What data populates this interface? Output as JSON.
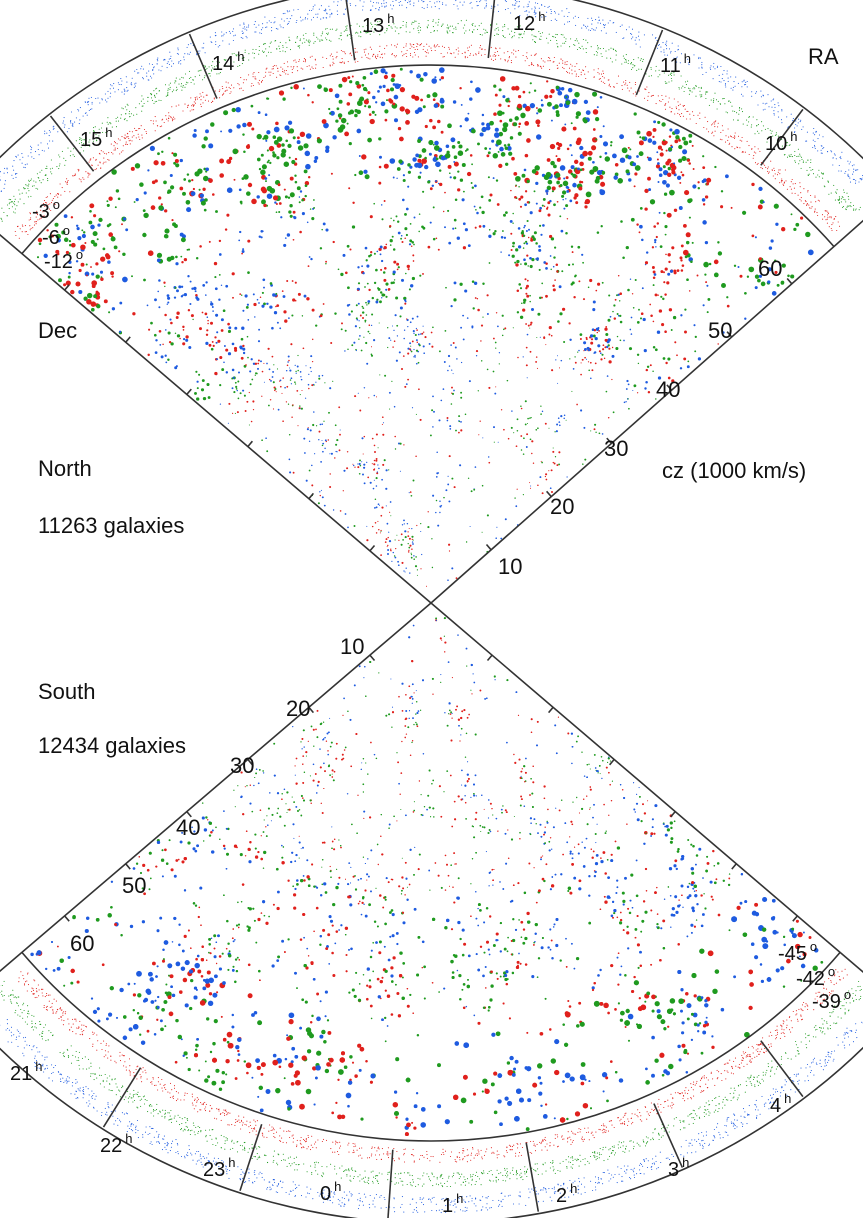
{
  "labels": {
    "ra": "RA",
    "dec": "Dec",
    "cz": "cz (1000 km/s)",
    "north": "North",
    "south": "South",
    "north_count": "11263 galaxies",
    "south_count": "12434 galaxies",
    "hour_sup": "h",
    "deg_sup": "o"
  },
  "north": {
    "ra_ticks": [
      "15",
      "14",
      "13",
      "12",
      "11",
      "10"
    ],
    "dec_labels": [
      "-3",
      "-6",
      "-12"
    ],
    "cz_ticks": [
      "10",
      "20",
      "30",
      "40",
      "50",
      "60"
    ]
  },
  "south": {
    "ra_ticks": [
      "21",
      "22",
      "23",
      "0",
      "1",
      "2",
      "3",
      "4"
    ],
    "dec_labels": [
      "-45",
      "-42",
      "-39"
    ],
    "cz_ticks": [
      "10",
      "20",
      "30",
      "40",
      "50",
      "60"
    ]
  },
  "colors": {
    "red": "#e0201c",
    "green": "#1f9a1f",
    "blue": "#1e5be0",
    "frame": "#333333"
  }
}
